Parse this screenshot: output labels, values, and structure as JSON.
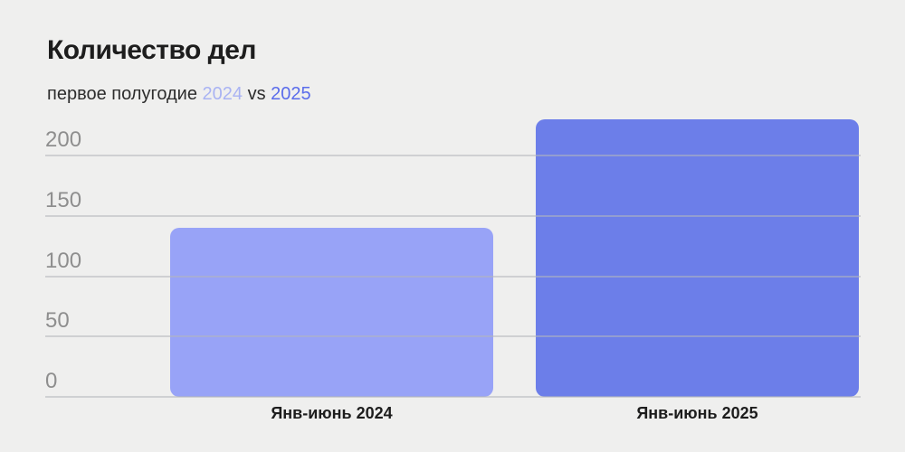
{
  "header": {
    "title": "Количество дел",
    "subtitle": {
      "prefix": "первое полугодие",
      "year1": "2024",
      "vs": "vs",
      "year2": "2025"
    }
  },
  "colors": {
    "background": "#efefee",
    "title_text": "#1d1d1d",
    "subtitle_text": "#2d2d2d",
    "subtitle_year_2024": "#a9b3f3",
    "subtitle_year_2025": "#5a6ceb",
    "bar_2024": "#98a3f7",
    "bar_2025": "#6c7ee9",
    "ytick_text": "#8e8e8e",
    "gridline": "rgba(180,182,188,0.55)",
    "xtick_text": "#1d1d1d"
  },
  "chart_data": {
    "type": "bar",
    "title": "Количество дел",
    "subtitle_text": "первое полугодие 2024 vs 2025",
    "categories": [
      "Янв-июнь 2024",
      "Янв-июнь 2025"
    ],
    "series": [
      {
        "name": "Количество дел",
        "values": [
          140,
          230
        ]
      }
    ],
    "bar_colors": [
      "#98a3f7",
      "#6c7ee9"
    ],
    "yticks": [
      0,
      50,
      100,
      150,
      200
    ],
    "ylim": [
      0,
      232
    ],
    "xlabel": "",
    "ylabel": "",
    "grid": true,
    "gridlines_over_bars": true,
    "legend": "none",
    "value_labels": "none"
  }
}
